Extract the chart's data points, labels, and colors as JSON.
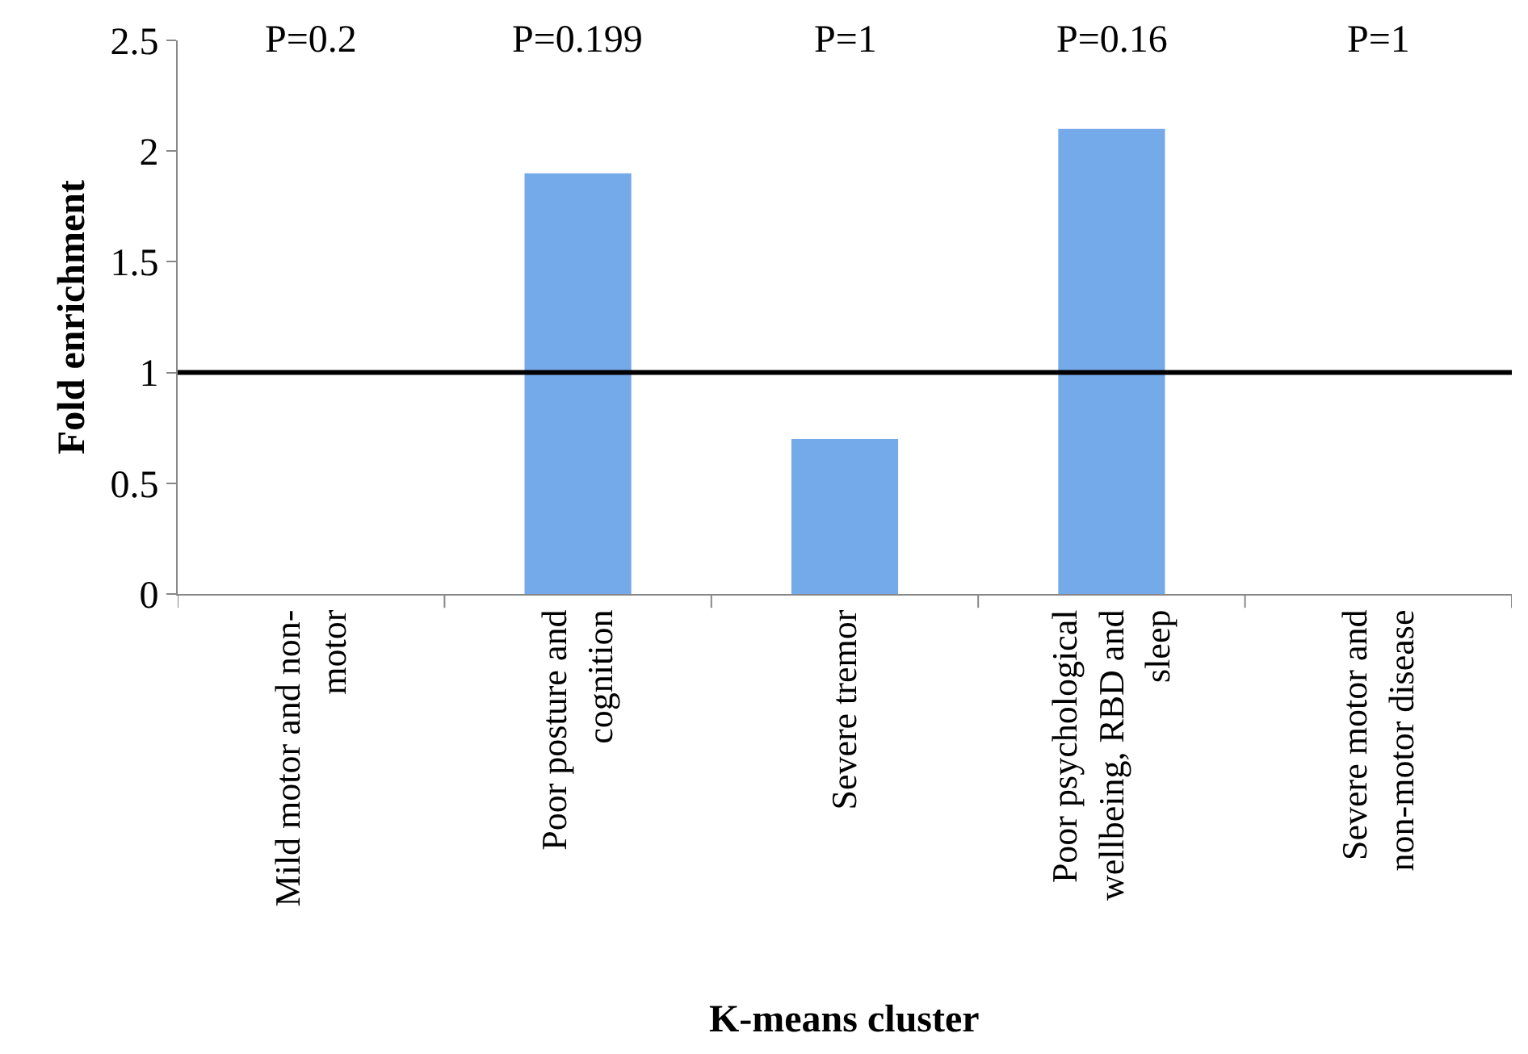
{
  "chart_data": {
    "type": "bar",
    "xlabel": "K-means cluster",
    "ylabel": "Fold enrichment",
    "categories": [
      "Mild motor and non-motor",
      "Poor posture and cognition",
      "Severe tremor",
      "Poor psychological wellbeing, RBD and sleep",
      "Severe motor and non-motor disease"
    ],
    "values": [
      0,
      1.9,
      0.7,
      2.1,
      0
    ],
    "color": "#74a9ea",
    "ylim": [
      0,
      2.5
    ],
    "yticks": [
      0,
      0.5,
      1,
      1.5,
      2,
      2.5
    ],
    "ref_lines": [
      {
        "axis": "y",
        "value": 1,
        "color": "#000000",
        "line_style": "solid"
      }
    ],
    "annotations": [
      "P=0.2",
      "P=0.199",
      "P=1",
      "P=0.16",
      "P=1"
    ]
  }
}
